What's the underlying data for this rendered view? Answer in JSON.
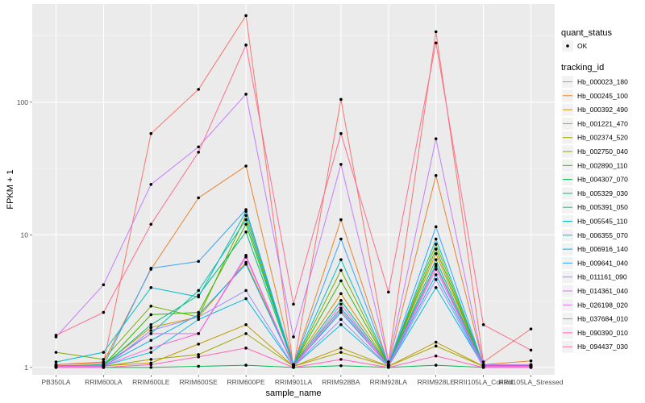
{
  "chart_data": {
    "type": "line",
    "title": "",
    "xlabel": "sample_name",
    "ylabel": "FPKM + 1",
    "yscale": "log10",
    "ylim": [
      0.88,
      550
    ],
    "yticks": [
      1,
      10,
      100
    ],
    "ytick_labels": [
      "1",
      "10",
      "100"
    ],
    "grid": true,
    "legend_position": "right",
    "categories": [
      "PB350LA",
      "RRIM600LA",
      "RRIM600LE",
      "RRIM600SE",
      "RRIM600PE",
      "RRIM901LA",
      "RRIM928BA",
      "RRIM928LA",
      "RRIM928LE",
      "RRII105LA_Control",
      "RRII105LA_Stressed"
    ],
    "shape_legend": {
      "title": "quant_status",
      "entries": [
        "OK"
      ]
    },
    "color_legend_title": "tracking_id",
    "series": [
      {
        "name": "Hb_000023_180",
        "color": "#F8766D",
        "values": [
          1.05,
          1.08,
          58,
          125,
          450,
          1.0,
          105,
          1.1,
          340,
          1.1,
          1.95
        ]
      },
      {
        "name": "Hb_000245_100",
        "color": "#EA8331",
        "values": [
          1.05,
          1.1,
          5.5,
          19,
          33,
          1.05,
          13,
          1.05,
          28,
          1.05,
          1.12
        ]
      },
      {
        "name": "Hb_000392_490",
        "color": "#D89000",
        "values": [
          1.03,
          1.05,
          2.0,
          2.4,
          6.2,
          1.05,
          3.6,
          1.05,
          7.2,
          1.03,
          1.05
        ]
      },
      {
        "name": "Hb_001221_470",
        "color": "#C09B00",
        "values": [
          1.02,
          1.03,
          1.08,
          1.5,
          2.1,
          1.02,
          1.4,
          1.02,
          1.55,
          1.02,
          1.03
        ]
      },
      {
        "name": "Hb_002374_520",
        "color": "#A3A500",
        "values": [
          1.02,
          1.02,
          1.15,
          1.25,
          1.8,
          1.02,
          1.3,
          1.02,
          1.45,
          1.02,
          1.02
        ]
      },
      {
        "name": "Hb_002750_040",
        "color": "#7CAE00",
        "values": [
          1.3,
          1.15,
          2.9,
          2.4,
          14,
          1.05,
          5.4,
          1.05,
          8.5,
          1.04,
          1.04
        ]
      },
      {
        "name": "Hb_002890_110",
        "color": "#39B600",
        "values": [
          1.03,
          1.04,
          2.5,
          2.6,
          12,
          1.05,
          4.5,
          1.05,
          7.8,
          1.03,
          1.03
        ]
      },
      {
        "name": "Hb_004307_070",
        "color": "#00BB4E",
        "values": [
          1.0,
          1.0,
          1.0,
          1.02,
          1.04,
          1.0,
          1.03,
          1.0,
          1.04,
          1.0,
          1.0
        ]
      },
      {
        "name": "Hb_005329_030",
        "color": "#00BF7D",
        "values": [
          1.02,
          1.03,
          2.1,
          3.5,
          10.5,
          1.04,
          3.2,
          1.04,
          6.5,
          1.02,
          1.02
        ]
      },
      {
        "name": "Hb_005391_050",
        "color": "#00C1A3",
        "values": [
          1.02,
          1.05,
          1.8,
          3.8,
          13,
          1.05,
          2.8,
          1.05,
          6.0,
          1.02,
          1.02
        ]
      },
      {
        "name": "Hb_005545_110",
        "color": "#00BFC4",
        "values": [
          1.1,
          1.3,
          4.0,
          3.4,
          15,
          1.05,
          6.5,
          1.05,
          9.3,
          1.03,
          1.03
        ]
      },
      {
        "name": "Hb_006355_070",
        "color": "#00BAE0",
        "values": [
          1.02,
          1.03,
          1.3,
          2.3,
          3.3,
          1.02,
          2.1,
          1.02,
          4.0,
          1.02,
          1.02
        ]
      },
      {
        "name": "Hb_006916_140",
        "color": "#00B0F6",
        "values": [
          1.02,
          1.03,
          1.6,
          2.5,
          6.0,
          1.03,
          2.6,
          1.03,
          5.0,
          1.02,
          1.02
        ]
      },
      {
        "name": "Hb_009641_040",
        "color": "#35A2FF",
        "values": [
          1.03,
          1.03,
          5.6,
          6.3,
          15.5,
          1.05,
          9.3,
          1.05,
          11.5,
          1.03,
          1.03
        ]
      },
      {
        "name": "Hb_011161_090",
        "color": "#9590FF",
        "values": [
          1.0,
          1.0,
          1.9,
          2.4,
          3.8,
          1.02,
          2.3,
          1.02,
          4.6,
          1.0,
          1.0
        ]
      },
      {
        "name": "Hb_014361_040",
        "color": "#C77CFF",
        "values": [
          1.7,
          4.2,
          24,
          46,
          115,
          1.7,
          34,
          1.1,
          53,
          1.05,
          1.05
        ]
      },
      {
        "name": "Hb_026198_020",
        "color": "#E76BF3",
        "values": [
          1.02,
          1.02,
          1.8,
          1.8,
          7.0,
          1.02,
          3.0,
          1.02,
          5.5,
          1.02,
          1.02
        ]
      },
      {
        "name": "Hb_037684_010",
        "color": "#FA62DB",
        "values": [
          1.02,
          1.03,
          1.4,
          1.8,
          6.8,
          1.02,
          2.7,
          1.02,
          5.8,
          1.02,
          1.02
        ]
      },
      {
        "name": "Hb_090390_010",
        "color": "#FF62BC",
        "values": [
          1.0,
          1.0,
          1.05,
          1.2,
          1.4,
          1.0,
          1.15,
          1.0,
          1.22,
          1.0,
          1.0
        ]
      },
      {
        "name": "Hb_094437_030",
        "color": "#FF6C91",
        "values": [
          1.75,
          2.6,
          12,
          42,
          270,
          3.0,
          58,
          3.7,
          280,
          2.1,
          1.35
        ]
      }
    ]
  }
}
